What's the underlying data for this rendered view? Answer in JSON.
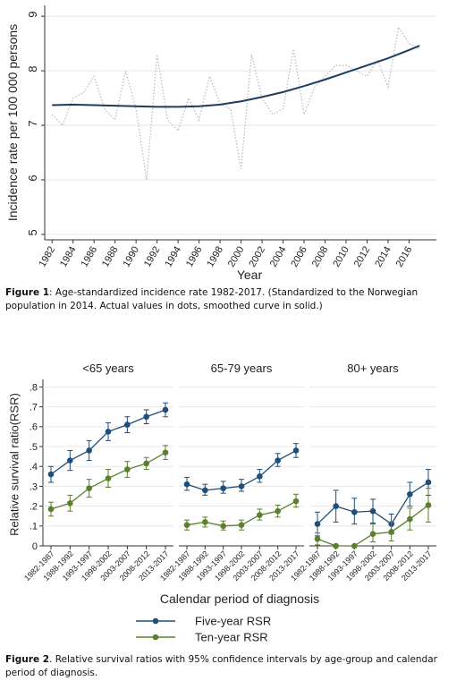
{
  "figure1": {
    "caption_label": "Figure 1",
    "caption_text": ": Age-standardized incidence rate 1982-2017. (Standardized to the Norwegian population in 2014. Actual values in dots, smoothed curve in solid.)",
    "chart_data": {
      "type": "line",
      "xlabel": "Year",
      "ylabel": "Incidence rate per 100 000 persons",
      "xlim": [
        1981.3,
        2018.6
      ],
      "ylim": [
        4.9,
        9.2
      ],
      "xticks": [
        1982,
        1984,
        1986,
        1988,
        1990,
        1992,
        1994,
        1996,
        1998,
        2000,
        2002,
        2004,
        2006,
        2008,
        2010,
        2012,
        2014,
        2016
      ],
      "yticks": [
        5,
        6,
        7,
        8,
        9
      ],
      "grid": true,
      "series": [
        {
          "style": "dotted",
          "color": "#b8b8b8",
          "x": [
            1982,
            1983,
            1984,
            1985,
            1986,
            1987,
            1988,
            1989,
            1990,
            1991,
            1992,
            1993,
            1994,
            1995,
            1996,
            1997,
            1998,
            1999,
            2000,
            2001,
            2002,
            2003,
            2004,
            2005,
            2006,
            2007,
            2008,
            2009,
            2010,
            2011,
            2012,
            2013,
            2014,
            2015,
            2016,
            2017
          ],
          "y": [
            7.2,
            7.0,
            7.5,
            7.6,
            7.9,
            7.3,
            7.1,
            8.0,
            7.3,
            6.0,
            8.3,
            7.1,
            6.9,
            7.5,
            7.1,
            7.9,
            7.4,
            7.3,
            6.2,
            8.3,
            7.5,
            7.2,
            7.3,
            8.4,
            7.2,
            7.7,
            7.9,
            8.1,
            8.1,
            8.0,
            7.9,
            8.2,
            7.7,
            8.8,
            8.5,
            8.4
          ]
        },
        {
          "style": "solid",
          "color": "#1f3d5c",
          "x": [
            1982,
            1984,
            1986,
            1988,
            1990,
            1992,
            1994,
            1996,
            1998,
            2000,
            2002,
            2004,
            2006,
            2008,
            2010,
            2012,
            2014,
            2016,
            2017
          ],
          "y": [
            7.37,
            7.38,
            7.37,
            7.36,
            7.35,
            7.34,
            7.34,
            7.35,
            7.38,
            7.44,
            7.52,
            7.61,
            7.72,
            7.84,
            7.97,
            8.1,
            8.23,
            8.38,
            8.46
          ]
        }
      ]
    }
  },
  "figure2": {
    "caption_label": "Figure 2",
    "caption_text": ". Relative survival ratios with 95% confidence intervals by age-group and calendar period of diagnosis.",
    "chart_data": {
      "type": "line",
      "ylabel": "Relative survival ratio(RSR)",
      "xlabel": "Calendar period of diagnosis",
      "ylim": [
        0,
        0.82
      ],
      "yticks": [
        0,
        0.1,
        0.2,
        0.3,
        0.4,
        0.5,
        0.6,
        0.7,
        0.8
      ],
      "ytick_labels": [
        "0",
        ".1",
        ".2",
        ".3",
        ".4",
        ".5",
        ".6",
        ".7",
        ".8"
      ],
      "categories": [
        "1982-1987",
        "1988-1992",
        "1993-1997",
        "1998-2002",
        "2003-2007",
        "2008-2012",
        "2013-2017"
      ],
      "legend_placement": "bottom",
      "legend": [
        "Five-year RSR",
        "Ten-year RSR"
      ],
      "colors": [
        "#1f4e79",
        "#5b7f2e"
      ],
      "panels": [
        {
          "title": "<65 years",
          "five": [
            0.36,
            0.43,
            0.48,
            0.575,
            0.61,
            0.65,
            0.685
          ],
          "five_lo": [
            0.32,
            0.38,
            0.43,
            0.53,
            0.57,
            0.615,
            0.65
          ],
          "five_hi": [
            0.4,
            0.48,
            0.53,
            0.62,
            0.65,
            0.685,
            0.72
          ],
          "ten": [
            0.185,
            0.215,
            0.29,
            0.34,
            0.385,
            0.415,
            0.47
          ],
          "ten_lo": [
            0.15,
            0.175,
            0.245,
            0.295,
            0.345,
            0.385,
            0.435
          ],
          "ten_hi": [
            0.22,
            0.255,
            0.335,
            0.385,
            0.425,
            0.445,
            0.505
          ]
        },
        {
          "title": "65-79 years",
          "five": [
            0.31,
            0.28,
            0.29,
            0.3,
            0.35,
            0.43,
            0.48
          ],
          "five_lo": [
            0.28,
            0.255,
            0.265,
            0.275,
            0.32,
            0.4,
            0.445
          ],
          "five_hi": [
            0.345,
            0.31,
            0.325,
            0.335,
            0.385,
            0.465,
            0.515
          ],
          "ten": [
            0.105,
            0.12,
            0.1,
            0.105,
            0.155,
            0.175,
            0.225
          ],
          "ten_lo": [
            0.08,
            0.095,
            0.08,
            0.08,
            0.13,
            0.145,
            0.195
          ],
          "ten_hi": [
            0.13,
            0.145,
            0.125,
            0.13,
            0.185,
            0.205,
            0.26
          ]
        },
        {
          "title": "80+ years",
          "five": [
            0.11,
            0.2,
            0.17,
            0.175,
            0.11,
            0.26,
            0.32
          ],
          "five_lo": [
            0.05,
            0.12,
            0.11,
            0.115,
            0.06,
            0.2,
            0.255
          ],
          "five_hi": [
            0.17,
            0.28,
            0.24,
            0.235,
            0.16,
            0.32,
            0.385
          ],
          "ten": [
            0.035,
            0.0,
            0.0,
            0.06,
            0.07,
            0.135,
            0.205
          ],
          "ten_lo": [
            0.005,
            0.0,
            0.0,
            0.02,
            0.025,
            0.08,
            0.12
          ],
          "ten_hi": [
            0.065,
            0.0,
            0.0,
            0.11,
            0.12,
            0.19,
            0.29
          ]
        }
      ]
    }
  }
}
